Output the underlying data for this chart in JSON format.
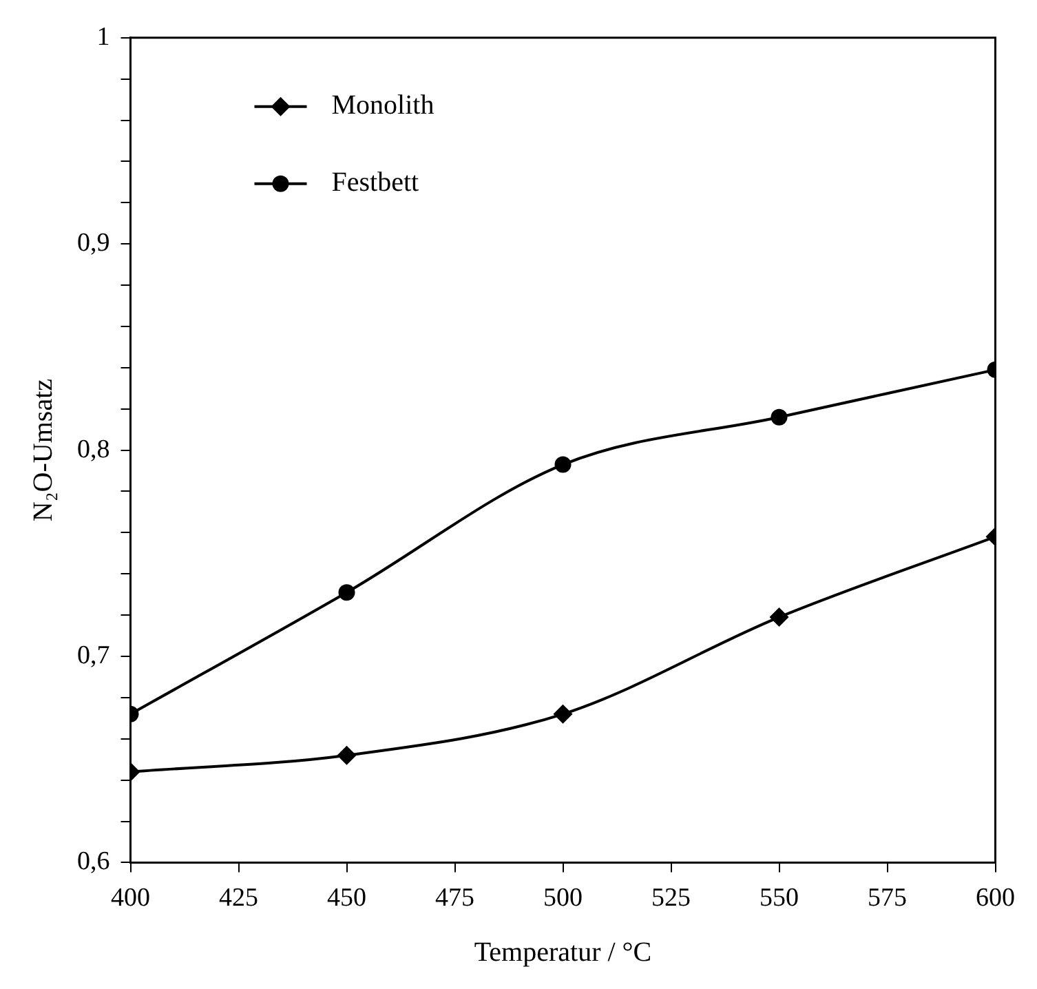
{
  "chart_data": {
    "type": "line",
    "xlabel": "Temperatur / °C",
    "ylabel": "N₂O-Umsatz",
    "x": [
      400,
      450,
      500,
      550,
      600
    ],
    "series": [
      {
        "name": "Monolith",
        "color": "#000000",
        "marker": "diamond",
        "values": [
          0.644,
          0.652,
          0.672,
          0.719,
          0.758
        ]
      },
      {
        "name": "Festbett",
        "color": "#000000",
        "marker": "circle",
        "values": [
          0.672,
          0.731,
          0.793,
          0.816,
          0.839
        ]
      }
    ],
    "xlim": [
      400,
      600
    ],
    "xticks": [
      400,
      425,
      450,
      475,
      500,
      525,
      550,
      575,
      600
    ],
    "ylim": [
      0.6,
      1
    ],
    "yticks": [
      {
        "value": 0.6,
        "label": "0,6"
      },
      {
        "value": 0.62,
        "label": null
      },
      {
        "value": 0.64,
        "label": null
      },
      {
        "value": 0.66,
        "label": null
      },
      {
        "value": 0.68,
        "label": null
      },
      {
        "value": 0.7,
        "label": "0,7"
      },
      {
        "value": 0.72,
        "label": null
      },
      {
        "value": 0.74,
        "label": null
      },
      {
        "value": 0.76,
        "label": null
      },
      {
        "value": 0.78,
        "label": null
      },
      {
        "value": 0.8,
        "label": "0,8"
      },
      {
        "value": 0.82,
        "label": null
      },
      {
        "value": 0.84,
        "label": null
      },
      {
        "value": 0.86,
        "label": null
      },
      {
        "value": 0.88,
        "label": null
      },
      {
        "value": 0.9,
        "label": "0,9"
      },
      {
        "value": 0.92,
        "label": null
      },
      {
        "value": 0.94,
        "label": null
      },
      {
        "value": 0.96,
        "label": null
      },
      {
        "value": 0.98,
        "label": null
      },
      {
        "value": 1,
        "label": "1"
      }
    ],
    "grid": false,
    "legend": "top left",
    "line_style": "solid"
  }
}
